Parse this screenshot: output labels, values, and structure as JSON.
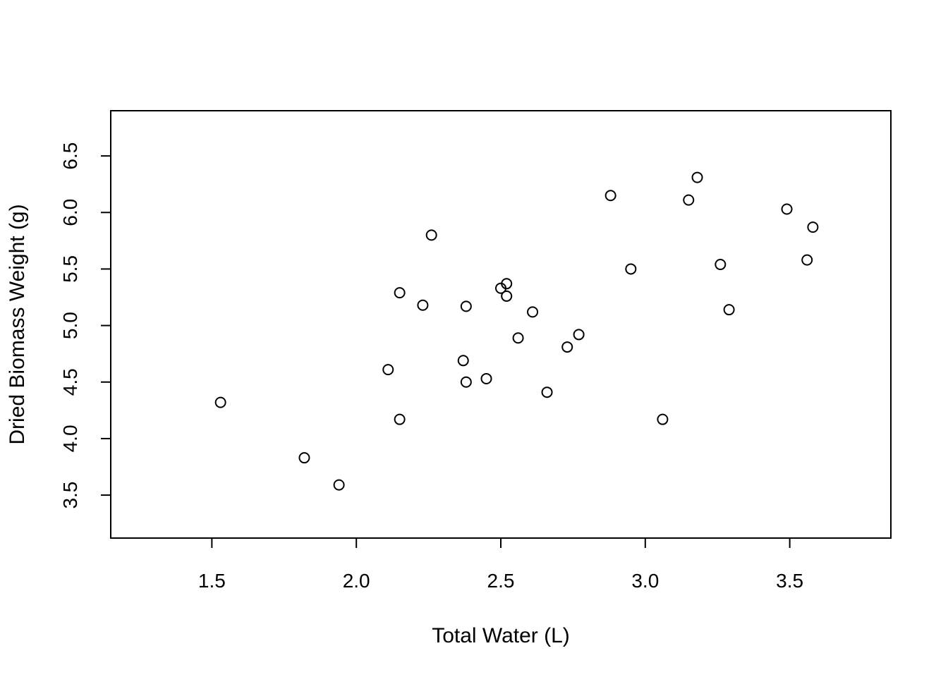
{
  "chart_data": {
    "type": "scatter",
    "title": "",
    "xlabel": "Total Water (L)",
    "ylabel": "Dried Biomass Weight (g)",
    "xlim": [
      1.15,
      3.85
    ],
    "ylim": [
      3.12,
      6.9
    ],
    "xticks": [
      1.5,
      2.0,
      2.5,
      3.0,
      3.5
    ],
    "yticks": [
      3.5,
      4.0,
      4.5,
      5.0,
      5.5,
      6.0,
      6.5
    ],
    "xtick_labels": [
      "1.5",
      "2.0",
      "2.5",
      "3.0",
      "3.5"
    ],
    "ytick_labels": [
      "3.5",
      "4.0",
      "4.5",
      "5.0",
      "5.5",
      "6.0",
      "6.5"
    ],
    "grid": false,
    "marker": "open-circle",
    "series": [
      {
        "points": [
          [
            1.53,
            4.32
          ],
          [
            1.82,
            3.83
          ],
          [
            1.94,
            3.59
          ],
          [
            2.11,
            4.61
          ],
          [
            2.15,
            4.17
          ],
          [
            2.15,
            5.29
          ],
          [
            2.23,
            5.18
          ],
          [
            2.26,
            5.8
          ],
          [
            2.37,
            4.69
          ],
          [
            2.38,
            4.5
          ],
          [
            2.38,
            5.17
          ],
          [
            2.45,
            4.53
          ],
          [
            2.5,
            5.33
          ],
          [
            2.52,
            5.26
          ],
          [
            2.52,
            5.37
          ],
          [
            2.56,
            4.89
          ],
          [
            2.61,
            5.12
          ],
          [
            2.66,
            4.41
          ],
          [
            2.73,
            4.81
          ],
          [
            2.77,
            4.92
          ],
          [
            2.88,
            6.15
          ],
          [
            2.95,
            5.5
          ],
          [
            3.06,
            4.17
          ],
          [
            3.15,
            6.11
          ],
          [
            3.18,
            6.31
          ],
          [
            3.26,
            5.54
          ],
          [
            3.29,
            5.14
          ],
          [
            3.49,
            6.03
          ],
          [
            3.56,
            5.58
          ],
          [
            3.58,
            5.87
          ]
        ]
      }
    ]
  }
}
